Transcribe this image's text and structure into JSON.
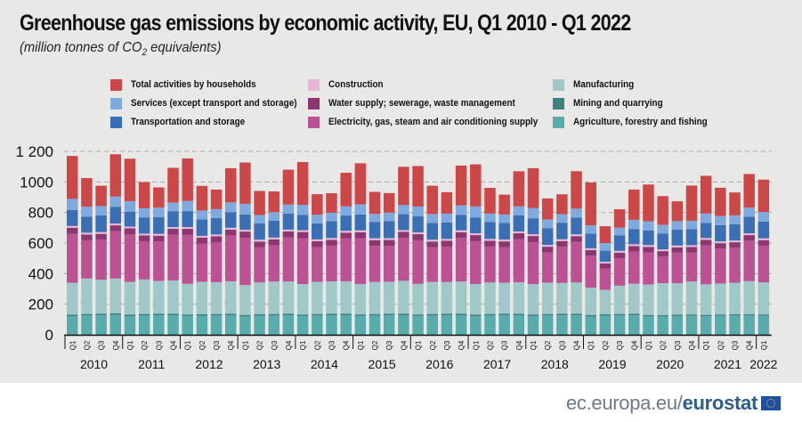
{
  "title": "Greenhouse gas emissions by economic activity, EU, Q1 2010 -  Q1 2022",
  "subtitle_pre": "(million tonnes of CO",
  "subtitle_sub": "2",
  "subtitle_post": " equivalents)",
  "footer": {
    "site": "ec.europa.eu/",
    "brand": "eurostat",
    "flag_icon": "eu-flag-icon"
  },
  "legend": [
    {
      "label": "Total activities by households",
      "color": "#cc4848"
    },
    {
      "label": "Services (except transport and storage)",
      "color": "#7eaadf"
    },
    {
      "label": "Transportation and storage",
      "color": "#3a6fb5"
    },
    {
      "label": "Construction",
      "color": "#e6b8d6"
    },
    {
      "label": "Water supply; sewerage, waste management",
      "color": "#8e3670"
    },
    {
      "label": "Electricity, gas, steam and air conditioning supply",
      "color": "#bc5193"
    },
    {
      "label": "Manufacturing",
      "color": "#a0c8c8"
    },
    {
      "label": "Mining and quarrying",
      "color": "#3f8080"
    },
    {
      "label": "Agriculture, forestry and fishing",
      "color": "#58acac"
    }
  ],
  "chart_data": {
    "type": "bar",
    "stacked": true,
    "title": "Greenhouse gas emissions by economic activity, EU, Q1 2010 -  Q1 2022",
    "subtitle": "(million tonnes of CO2 equivalents)",
    "xlabel": "",
    "ylabel": "",
    "ylim": [
      0,
      1200
    ],
    "yticks": [
      0,
      200,
      400,
      600,
      800,
      1000,
      1200
    ],
    "ytick_labels": [
      "0",
      "200",
      "400",
      "600",
      "800",
      "1000",
      "1 200"
    ],
    "grid": "horizontal-dashed",
    "legend_position": "top",
    "quarters": [
      "Q1",
      "Q2",
      "Q3",
      "Q4",
      "Q1",
      "Q2",
      "Q3",
      "Q4",
      "Q1",
      "Q2",
      "Q3",
      "Q4",
      "Q1",
      "Q2",
      "Q3",
      "Q4",
      "Q1",
      "Q2",
      "Q3",
      "Q4",
      "Q1",
      "Q2",
      "Q3",
      "Q4",
      "Q1",
      "Q2",
      "Q3",
      "Q4",
      "Q1",
      "Q2",
      "Q3",
      "Q4",
      "Q1",
      "Q2",
      "Q3",
      "Q4",
      "Q1",
      "Q2",
      "Q3",
      "Q4",
      "Q1",
      "Q2",
      "Q3",
      "Q4",
      "Q1",
      "Q2",
      "Q3",
      "Q4",
      "Q1"
    ],
    "years": [
      "2010",
      "2011",
      "2012",
      "2013",
      "2014",
      "2015",
      "2016",
      "2017",
      "2018",
      "2019",
      "2020",
      "2021",
      "2022"
    ],
    "series": [
      {
        "name": "Agriculture, forestry and fishing",
        "color": "#58acac",
        "values": [
          122,
          126,
          128,
          130,
          122,
          126,
          127,
          127,
          123,
          125,
          126,
          128,
          120,
          124,
          126,
          128,
          122,
          126,
          127,
          128,
          123,
          126,
          127,
          128,
          123,
          126,
          127,
          128,
          122,
          126,
          127,
          128,
          123,
          126,
          127,
          128,
          120,
          124,
          126,
          127,
          120,
          120,
          123,
          124,
          121,
          124,
          126,
          126,
          124
        ]
      },
      {
        "name": "Mining and quarrying",
        "color": "#3f8080",
        "values": [
          10,
          10,
          10,
          10,
          10,
          10,
          10,
          10,
          10,
          10,
          10,
          10,
          10,
          10,
          10,
          10,
          10,
          10,
          10,
          10,
          10,
          10,
          10,
          10,
          10,
          10,
          10,
          10,
          10,
          10,
          10,
          10,
          10,
          10,
          10,
          10,
          10,
          10,
          10,
          10,
          9,
          8,
          9,
          9,
          9,
          9,
          9,
          9,
          9
        ]
      },
      {
        "name": "Manufacturing",
        "color": "#a0c8c8",
        "values": [
          208,
          232,
          222,
          228,
          214,
          226,
          215,
          218,
          200,
          212,
          208,
          212,
          195,
          208,
          212,
          210,
          200,
          210,
          212,
          212,
          198,
          210,
          210,
          215,
          200,
          210,
          208,
          210,
          200,
          206,
          204,
          206,
          198,
          205,
          202,
          204,
          178,
          160,
          185,
          197,
          200,
          210,
          205,
          215,
          200,
          202,
          205,
          216,
          210
        ]
      },
      {
        "name": "Electricity, gas, steam and air conditioning supply",
        "color": "#bc5193",
        "values": [
          320,
          250,
          262,
          310,
          310,
          250,
          258,
          300,
          320,
          250,
          262,
          300,
          310,
          230,
          238,
          290,
          300,
          228,
          234,
          280,
          300,
          235,
          235,
          282,
          285,
          226,
          232,
          285,
          280,
          235,
          232,
          282,
          275,
          197,
          236,
          265,
          210,
          138,
          180,
          210,
          210,
          175,
          200,
          190,
          255,
          230,
          230,
          265,
          240
        ]
      },
      {
        "name": "Water supply; sewerage, waste management",
        "color": "#8e3670",
        "values": [
          40,
          38,
          38,
          38,
          40,
          38,
          38,
          38,
          40,
          38,
          38,
          38,
          40,
          38,
          38,
          38,
          40,
          38,
          38,
          38,
          40,
          38,
          38,
          38,
          40,
          38,
          38,
          38,
          40,
          38,
          38,
          38,
          40,
          38,
          38,
          38,
          36,
          35,
          36,
          36,
          36,
          34,
          35,
          36,
          36,
          34,
          35,
          36,
          36
        ]
      },
      {
        "name": "Construction",
        "color": "#e6b8d6",
        "values": [
          12,
          12,
          12,
          12,
          12,
          12,
          12,
          12,
          12,
          12,
          12,
          12,
          12,
          12,
          12,
          12,
          12,
          12,
          12,
          12,
          12,
          12,
          12,
          12,
          12,
          12,
          12,
          12,
          12,
          12,
          12,
          12,
          12,
          12,
          12,
          12,
          12,
          11,
          12,
          12,
          12,
          12,
          12,
          12,
          12,
          12,
          12,
          12,
          12
        ]
      },
      {
        "name": "Transportation and storage",
        "color": "#3a6fb5",
        "values": [
          105,
          105,
          110,
          108,
          98,
          106,
          110,
          102,
          104,
          108,
          108,
          102,
          100,
          106,
          110,
          104,
          100,
          105,
          110,
          100,
          104,
          108,
          112,
          104,
          105,
          110,
          108,
          102,
          104,
          110,
          108,
          106,
          104,
          108,
          108,
          110,
          96,
          72,
          102,
          100,
          96,
          104,
          104,
          106,
          98,
          106,
          106,
          108,
          110
        ]
      },
      {
        "name": "Services (except transport and storage)",
        "color": "#7eaadf",
        "values": [
          72,
          65,
          60,
          68,
          68,
          60,
          62,
          58,
          66,
          58,
          58,
          64,
          70,
          55,
          56,
          60,
          66,
          56,
          55,
          60,
          66,
          52,
          55,
          60,
          64,
          58,
          58,
          62,
          72,
          56,
          56,
          58,
          68,
          58,
          56,
          58,
          54,
          50,
          50,
          60,
          60,
          56,
          55,
          54,
          62,
          60,
          58,
          60,
          62
        ]
      },
      {
        "name": "Total activities by households",
        "color": "#cc4848",
        "values": [
          281,
          187,
          133,
          277,
          278,
          171,
          132,
          227,
          279,
          161,
          128,
          224,
          270,
          158,
          136,
          228,
          280,
          135,
          128,
          220,
          269,
          144,
          128,
          250,
          265,
          185,
          140,
          260,
          275,
          168,
          130,
          230,
          260,
          138,
          130,
          245,
          280,
          110,
          120,
          198,
          240,
          188,
          130,
          230,
          247,
          185,
          150,
          220,
          212
        ]
      }
    ]
  }
}
